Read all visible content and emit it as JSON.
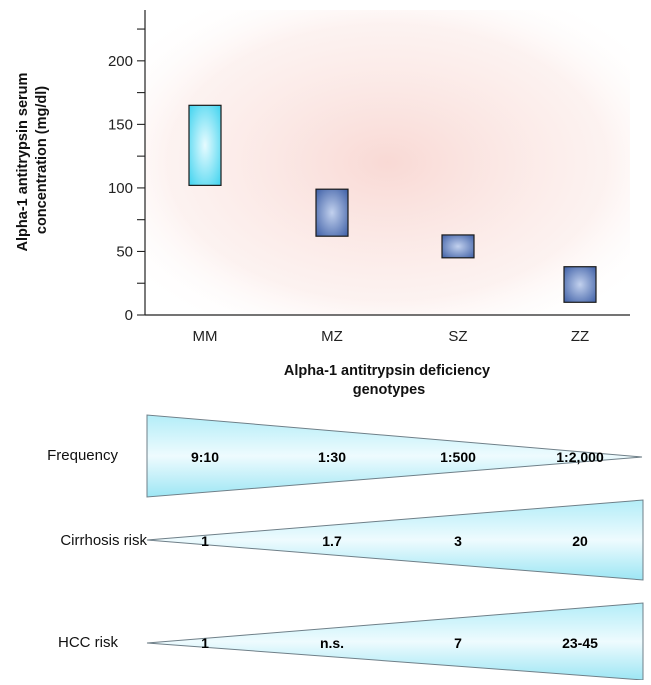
{
  "chart_data": {
    "type": "bar",
    "subtype": "floating-range",
    "ylabel_lines": [
      "Alpha-1 antitrypsin serum",
      "concentration (mg/dl)"
    ],
    "xlabel_lines": [
      "Alpha-1 antitrypsin deficiency",
      "genotypes"
    ],
    "ylim": [
      0,
      240
    ],
    "yticks": [
      0,
      50,
      100,
      150,
      200
    ],
    "categories": [
      "MM",
      "MZ",
      "SZ",
      "ZZ"
    ],
    "ranges": [
      {
        "category": "MM",
        "low": 102,
        "high": 165
      },
      {
        "category": "MZ",
        "low": 62,
        "high": 99
      },
      {
        "category": "SZ",
        "low": 45,
        "high": 63
      },
      {
        "category": "ZZ",
        "low": 10,
        "high": 38
      }
    ],
    "colors": {
      "MM_fill_center": "#dff9ff",
      "MM_fill_edge": "#3fd3ef",
      "other_fill_center": "#b8c9ea",
      "other_fill_edge": "#3e5fa6",
      "background_center": "#fbe9e7"
    }
  },
  "rows": [
    {
      "label": "Frequency",
      "direction": "decreasing",
      "values": [
        "9:10",
        "1:30",
        "1:500",
        "1:2,000"
      ]
    },
    {
      "label": "Cirrhosis risk",
      "direction": "increasing",
      "values": [
        "1",
        "1.7",
        "3",
        "20"
      ]
    },
    {
      "label": "HCC risk",
      "direction": "increasing",
      "values": [
        "1",
        "n.s.",
        "7",
        "23-45"
      ]
    }
  ],
  "wedge_colors": {
    "edge": "#8fe3f2",
    "center": "#e6f8fc",
    "stroke": "#6f7f88"
  }
}
